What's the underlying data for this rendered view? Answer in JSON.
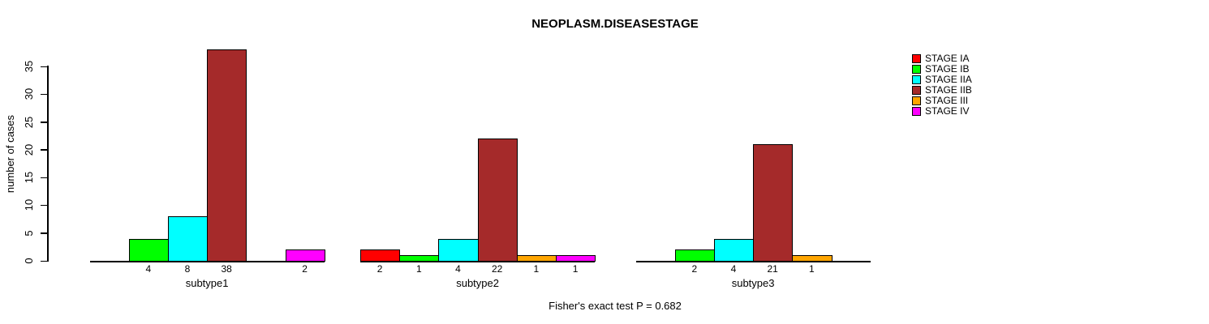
{
  "title": "NEOPLASM.DISEASESTAGE",
  "y_axis_label": "number of cases",
  "footer_annotation": "Fisher's exact test P = 0.682",
  "legend": {
    "position": "right",
    "items": [
      {
        "label": "STAGE IA",
        "color": "#FF0000"
      },
      {
        "label": "STAGE IB",
        "color": "#00FF00"
      },
      {
        "label": "STAGE IIA",
        "color": "#00FFFF"
      },
      {
        "label": "STAGE IIB",
        "color": "#A52A2A"
      },
      {
        "label": "STAGE III",
        "color": "#FFA500"
      },
      {
        "label": "STAGE IV",
        "color": "#FF00FF"
      }
    ]
  },
  "chart_data": {
    "type": "bar",
    "grouped": true,
    "title": "NEOPLASM.DISEASESTAGE",
    "xlabel": "",
    "ylabel": "number of cases",
    "categories": [
      "subtype1",
      "subtype2",
      "subtype3"
    ],
    "series": [
      {
        "name": "STAGE IA",
        "color": "#FF0000",
        "values": [
          0,
          2,
          0
        ]
      },
      {
        "name": "STAGE IB",
        "color": "#00FF00",
        "values": [
          4,
          1,
          2
        ]
      },
      {
        "name": "STAGE IIA",
        "color": "#00FFFF",
        "values": [
          8,
          4,
          4
        ]
      },
      {
        "name": "STAGE IIB",
        "color": "#A52A2A",
        "values": [
          38,
          22,
          21
        ]
      },
      {
        "name": "STAGE III",
        "color": "#FFA500",
        "values": [
          0,
          1,
          1
        ]
      },
      {
        "name": "STAGE IV",
        "color": "#FF00FF",
        "values": [
          2,
          1,
          0
        ]
      }
    ],
    "bar_value_labels_shown": "only_nonzero",
    "ylim": [
      0,
      38
    ],
    "yticks": [
      0,
      5,
      10,
      15,
      20,
      25,
      30,
      35
    ],
    "grid": false,
    "legend_position": "right",
    "annotation": "Fisher's exact test P = 0.682"
  }
}
